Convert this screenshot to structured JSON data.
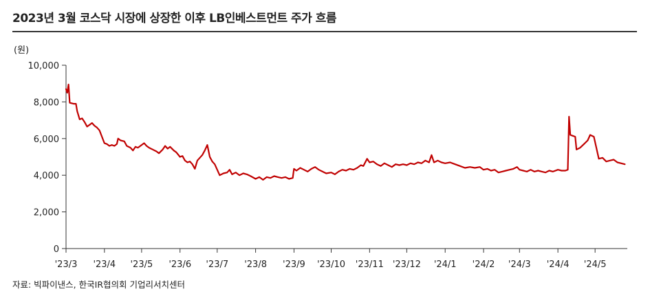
{
  "title": "2023년 3월 코스닥 시장에 상장한 이후 LB인베스트먼트 주가 흐름",
  "unit": "(원)",
  "source": "자료: 빅파이낸스, 한국IR협의회 기업리서치센터",
  "colors": {
    "line": "#C00000",
    "axis": "#333333"
  },
  "chart_data": {
    "type": "line",
    "title": "2023년 3월 코스닥 시장에 상장한 이후 LB인베스트먼트 주가 흐름",
    "ylabel": "(원)",
    "ylim": [
      0,
      10000
    ],
    "yticks": [
      0,
      2000,
      4000,
      6000,
      8000,
      10000
    ],
    "ytick_labels": [
      "0",
      "2,000",
      "4,000",
      "6,000",
      "8,000",
      "10,000"
    ],
    "xlim": [
      "2023-03-01",
      "2024-05-27"
    ],
    "xticks": [
      "2023-03-01",
      "2023-04-01",
      "2023-05-01",
      "2023-06-01",
      "2023-07-01",
      "2023-08-01",
      "2023-09-01",
      "2023-10-01",
      "2023-11-01",
      "2023-12-01",
      "2024-01-01",
      "2024-02-01",
      "2024-03-01",
      "2024-04-01",
      "2024-05-01"
    ],
    "xtick_labels": [
      "'23/3",
      "'23/4",
      "'23/5",
      "'23/6",
      "'23/7",
      "'23/8",
      "'23/9",
      "'23/10",
      "'23/11",
      "'23/12",
      "'24/1",
      "'24/2",
      "'24/3",
      "'24/4",
      "'24/5"
    ],
    "grid": false,
    "series": [
      {
        "values": [
          [
            "2023-03-01",
            8700
          ],
          [
            "2023-03-02",
            8500
          ],
          [
            "2023-03-03",
            8950
          ],
          [
            "2023-03-04",
            7950
          ],
          [
            "2023-03-07",
            7900
          ],
          [
            "2023-03-09",
            7900
          ],
          [
            "2023-03-10",
            7500
          ],
          [
            "2023-03-12",
            7050
          ],
          [
            "2023-03-14",
            7100
          ],
          [
            "2023-03-16",
            6900
          ],
          [
            "2023-03-18",
            6650
          ],
          [
            "2023-03-20",
            6750
          ],
          [
            "2023-03-22",
            6850
          ],
          [
            "2023-03-24",
            6700
          ],
          [
            "2023-03-26",
            6600
          ],
          [
            "2023-03-28",
            6450
          ],
          [
            "2023-03-30",
            6100
          ],
          [
            "2023-04-01",
            5750
          ],
          [
            "2023-04-03",
            5700
          ],
          [
            "2023-04-05",
            5600
          ],
          [
            "2023-04-07",
            5650
          ],
          [
            "2023-04-09",
            5600
          ],
          [
            "2023-04-11",
            5700
          ],
          [
            "2023-04-12",
            6000
          ],
          [
            "2023-04-14",
            5900
          ],
          [
            "2023-04-17",
            5850
          ],
          [
            "2023-04-19",
            5600
          ],
          [
            "2023-04-22",
            5500
          ],
          [
            "2023-04-24",
            5350
          ],
          [
            "2023-04-26",
            5550
          ],
          [
            "2023-04-28",
            5500
          ],
          [
            "2023-04-30",
            5600
          ],
          [
            "2023-05-03",
            5750
          ],
          [
            "2023-05-05",
            5600
          ],
          [
            "2023-05-07",
            5500
          ],
          [
            "2023-05-10",
            5400
          ],
          [
            "2023-05-13",
            5300
          ],
          [
            "2023-05-15",
            5200
          ],
          [
            "2023-05-18",
            5400
          ],
          [
            "2023-05-20",
            5600
          ],
          [
            "2023-05-22",
            5450
          ],
          [
            "2023-05-24",
            5550
          ],
          [
            "2023-05-27",
            5350
          ],
          [
            "2023-05-29",
            5250
          ],
          [
            "2023-06-01",
            5000
          ],
          [
            "2023-06-03",
            5050
          ],
          [
            "2023-06-05",
            4800
          ],
          [
            "2023-06-07",
            4700
          ],
          [
            "2023-06-09",
            4750
          ],
          [
            "2023-06-11",
            4600
          ],
          [
            "2023-06-13",
            4350
          ],
          [
            "2023-06-15",
            4800
          ],
          [
            "2023-06-17",
            4950
          ],
          [
            "2023-06-19",
            5100
          ],
          [
            "2023-06-21",
            5350
          ],
          [
            "2023-06-23",
            5650
          ],
          [
            "2023-06-25",
            5000
          ],
          [
            "2023-06-27",
            4750
          ],
          [
            "2023-06-29",
            4600
          ],
          [
            "2023-07-01",
            4300
          ],
          [
            "2023-07-03",
            4000
          ],
          [
            "2023-07-06",
            4100
          ],
          [
            "2023-07-09",
            4150
          ],
          [
            "2023-07-11",
            4300
          ],
          [
            "2023-07-13",
            4050
          ],
          [
            "2023-07-16",
            4150
          ],
          [
            "2023-07-19",
            4000
          ],
          [
            "2023-07-22",
            4100
          ],
          [
            "2023-07-25",
            4050
          ],
          [
            "2023-07-28",
            3950
          ],
          [
            "2023-08-01",
            3800
          ],
          [
            "2023-08-04",
            3900
          ],
          [
            "2023-08-07",
            3750
          ],
          [
            "2023-08-10",
            3900
          ],
          [
            "2023-08-13",
            3850
          ],
          [
            "2023-08-16",
            3950
          ],
          [
            "2023-08-19",
            3900
          ],
          [
            "2023-08-22",
            3850
          ],
          [
            "2023-08-25",
            3900
          ],
          [
            "2023-08-28",
            3800
          ],
          [
            "2023-08-31",
            3850
          ],
          [
            "2023-09-01",
            4350
          ],
          [
            "2023-09-03",
            4250
          ],
          [
            "2023-09-06",
            4400
          ],
          [
            "2023-09-09",
            4300
          ],
          [
            "2023-09-12",
            4200
          ],
          [
            "2023-09-15",
            4350
          ],
          [
            "2023-09-18",
            4450
          ],
          [
            "2023-09-21",
            4300
          ],
          [
            "2023-09-24",
            4200
          ],
          [
            "2023-09-27",
            4100
          ],
          [
            "2023-10-01",
            4150
          ],
          [
            "2023-10-04",
            4050
          ],
          [
            "2023-10-07",
            4200
          ],
          [
            "2023-10-10",
            4300
          ],
          [
            "2023-10-13",
            4250
          ],
          [
            "2023-10-16",
            4350
          ],
          [
            "2023-10-19",
            4300
          ],
          [
            "2023-10-22",
            4400
          ],
          [
            "2023-10-25",
            4550
          ],
          [
            "2023-10-27",
            4500
          ],
          [
            "2023-10-30",
            4900
          ],
          [
            "2023-11-01",
            4700
          ],
          [
            "2023-11-04",
            4750
          ],
          [
            "2023-11-07",
            4600
          ],
          [
            "2023-11-10",
            4500
          ],
          [
            "2023-11-13",
            4650
          ],
          [
            "2023-11-16",
            4550
          ],
          [
            "2023-11-19",
            4450
          ],
          [
            "2023-11-22",
            4600
          ],
          [
            "2023-11-25",
            4550
          ],
          [
            "2023-11-28",
            4600
          ],
          [
            "2023-12-01",
            4550
          ],
          [
            "2023-12-04",
            4650
          ],
          [
            "2023-12-07",
            4600
          ],
          [
            "2023-12-10",
            4700
          ],
          [
            "2023-12-13",
            4650
          ],
          [
            "2023-12-16",
            4800
          ],
          [
            "2023-12-19",
            4700
          ],
          [
            "2023-12-21",
            5100
          ],
          [
            "2023-12-23",
            4700
          ],
          [
            "2023-12-26",
            4800
          ],
          [
            "2023-12-29",
            4700
          ],
          [
            "2024-01-01",
            4650
          ],
          [
            "2024-01-05",
            4700
          ],
          [
            "2024-01-09",
            4600
          ],
          [
            "2024-01-13",
            4500
          ],
          [
            "2024-01-17",
            4400
          ],
          [
            "2024-01-21",
            4450
          ],
          [
            "2024-01-25",
            4400
          ],
          [
            "2024-01-29",
            4450
          ],
          [
            "2024-02-01",
            4300
          ],
          [
            "2024-02-04",
            4350
          ],
          [
            "2024-02-07",
            4250
          ],
          [
            "2024-02-10",
            4300
          ],
          [
            "2024-02-13",
            4150
          ],
          [
            "2024-02-16",
            4200
          ],
          [
            "2024-02-19",
            4250
          ],
          [
            "2024-02-22",
            4300
          ],
          [
            "2024-02-25",
            4350
          ],
          [
            "2024-02-28",
            4450
          ],
          [
            "2024-03-01",
            4300
          ],
          [
            "2024-03-04",
            4250
          ],
          [
            "2024-03-07",
            4200
          ],
          [
            "2024-03-10",
            4300
          ],
          [
            "2024-03-13",
            4200
          ],
          [
            "2024-03-16",
            4250
          ],
          [
            "2024-03-19",
            4200
          ],
          [
            "2024-03-22",
            4150
          ],
          [
            "2024-03-25",
            4250
          ],
          [
            "2024-03-28",
            4200
          ],
          [
            "2024-04-01",
            4300
          ],
          [
            "2024-04-04",
            4250
          ],
          [
            "2024-04-07",
            4250
          ],
          [
            "2024-04-09",
            4300
          ],
          [
            "2024-04-10",
            7200
          ],
          [
            "2024-04-11",
            6200
          ],
          [
            "2024-04-13",
            6150
          ],
          [
            "2024-04-15",
            6100
          ],
          [
            "2024-04-16",
            5400
          ],
          [
            "2024-04-19",
            5500
          ],
          [
            "2024-04-22",
            5700
          ],
          [
            "2024-04-25",
            5900
          ],
          [
            "2024-04-27",
            6200
          ],
          [
            "2024-04-30",
            6100
          ],
          [
            "2024-05-02",
            5500
          ],
          [
            "2024-05-04",
            4900
          ],
          [
            "2024-05-07",
            4950
          ],
          [
            "2024-05-10",
            4750
          ],
          [
            "2024-05-13",
            4800
          ],
          [
            "2024-05-16",
            4850
          ],
          [
            "2024-05-19",
            4700
          ],
          [
            "2024-05-22",
            4650
          ],
          [
            "2024-05-25",
            4600
          ]
        ]
      }
    ]
  }
}
